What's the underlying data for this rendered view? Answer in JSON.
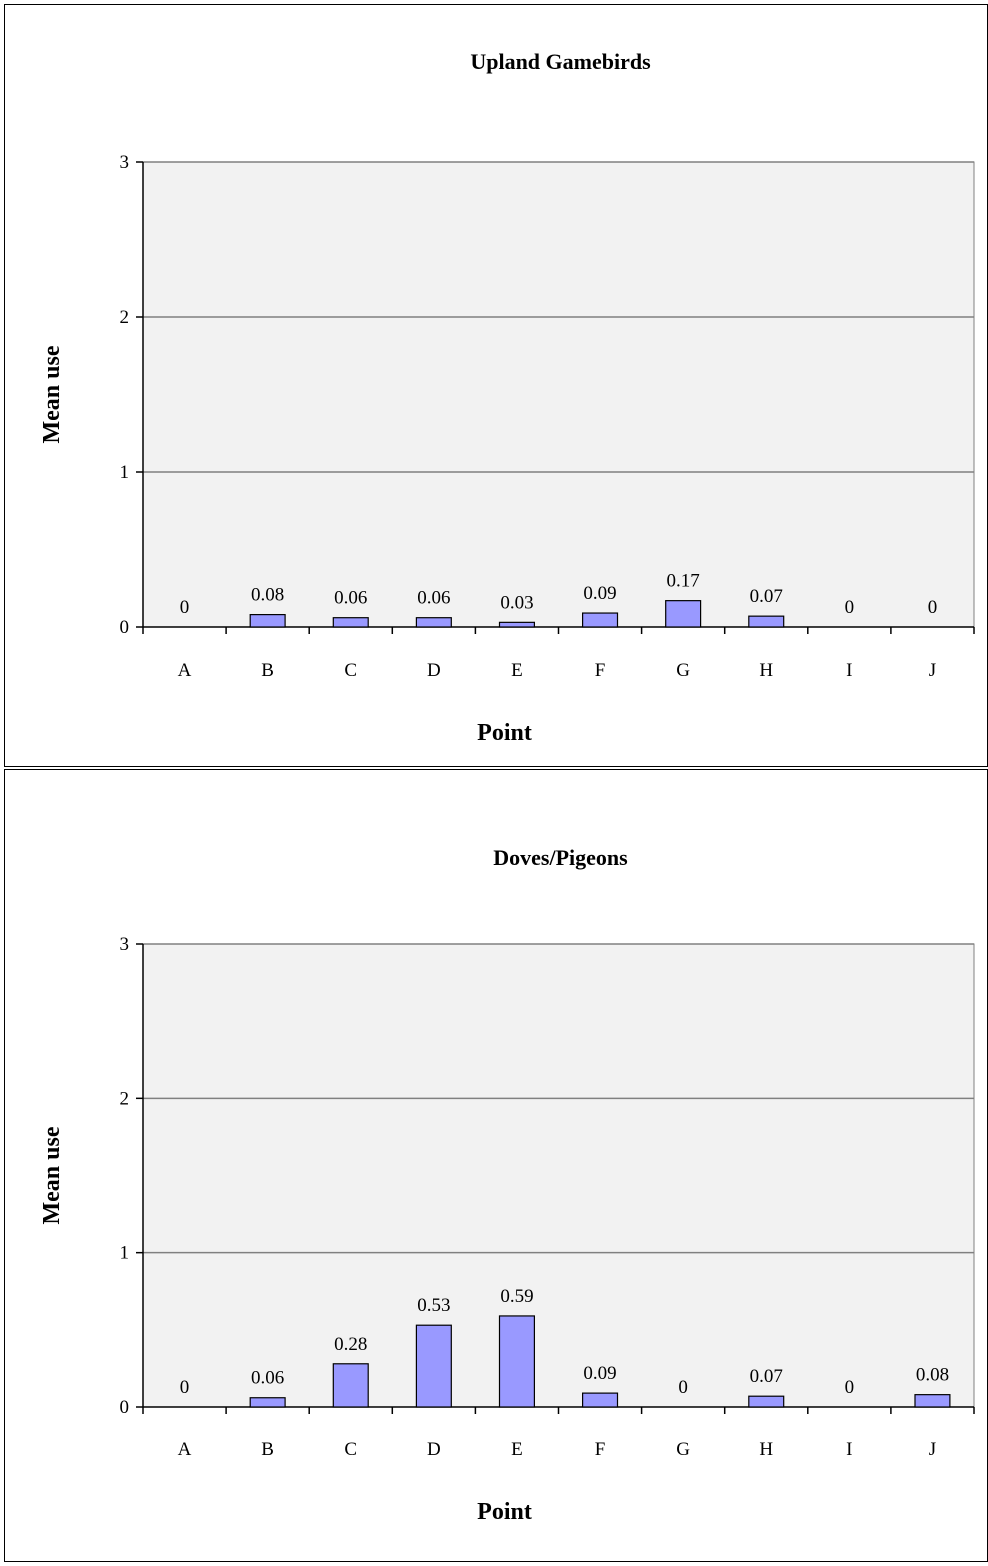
{
  "chart_data": [
    {
      "type": "bar",
      "title": "Upland Gamebirds",
      "xlabel": "Point",
      "ylabel": "Mean use",
      "categories": [
        "A",
        "B",
        "C",
        "D",
        "E",
        "F",
        "G",
        "H",
        "I",
        "J"
      ],
      "values": [
        0,
        0.08,
        0.06,
        0.06,
        0.03,
        0.09,
        0.17,
        0.07,
        0,
        0
      ],
      "data_labels": [
        "0",
        "0.08",
        "0.06",
        "0.06",
        "0.03",
        "0.09",
        "0.17",
        "0.07",
        "0",
        "0"
      ],
      "ylim": [
        0,
        3
      ],
      "yticks": [
        "0",
        "1",
        "2",
        "3"
      ],
      "grid": true,
      "bar_color": "#9999ff",
      "plot_bg": "#f2f2f2"
    },
    {
      "type": "bar",
      "title": "Doves/Pigeons",
      "xlabel": "Point",
      "ylabel": "Mean use",
      "categories": [
        "A",
        "B",
        "C",
        "D",
        "E",
        "F",
        "G",
        "H",
        "I",
        "J"
      ],
      "values": [
        0,
        0.06,
        0.28,
        0.53,
        0.59,
        0.09,
        0,
        0.07,
        0,
        0.08
      ],
      "data_labels": [
        "0",
        "0.06",
        "0.28",
        "0.53",
        "0.59",
        "0.09",
        "0",
        "0.07",
        "0",
        "0.08"
      ],
      "ylim": [
        0,
        3
      ],
      "yticks": [
        "0",
        "1",
        "2",
        "3"
      ],
      "grid": true,
      "bar_color": "#9999ff",
      "plot_bg": "#f2f2f2"
    }
  ]
}
